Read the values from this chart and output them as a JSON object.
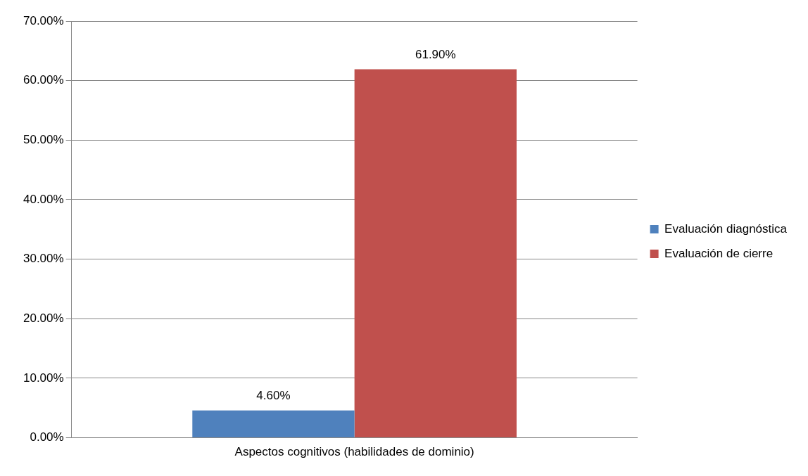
{
  "chart_data": {
    "type": "bar",
    "categories": [
      "Aspectos cognitivos (habilidades de dominio)"
    ],
    "series": [
      {
        "name": "Evaluación diagnóstica",
        "color": "#4f81bd",
        "values": [
          4.6
        ],
        "value_labels": [
          "4.60%"
        ]
      },
      {
        "name": "Evaluación de cierre",
        "color": "#c0504d",
        "values": [
          61.9
        ],
        "value_labels": [
          "61.90%"
        ]
      }
    ],
    "ylim": [
      0,
      70
    ],
    "yticks": [
      {
        "value": 0,
        "label": "0.00%"
      },
      {
        "value": 10,
        "label": "10.00%"
      },
      {
        "value": 20,
        "label": "20.00%"
      },
      {
        "value": 30,
        "label": "30.00%"
      },
      {
        "value": 40,
        "label": "40.00%"
      },
      {
        "value": 50,
        "label": "50.00%"
      },
      {
        "value": 60,
        "label": "60.00%"
      },
      {
        "value": 70,
        "label": "70.00%"
      }
    ],
    "grid": "y",
    "legend": "right"
  }
}
